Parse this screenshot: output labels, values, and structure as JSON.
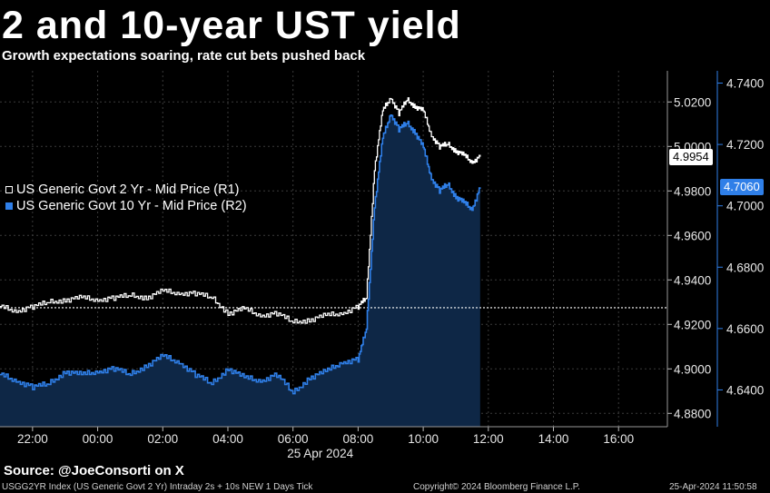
{
  "header": {
    "title": "2 and 10-year UST yield",
    "subtitle": "Growth expectations soaring, rate cut bets pushed back"
  },
  "footer": {
    "source": "Source: @JoeConsorti on X",
    "index_info": "USGG2YR Index (US Generic Govt 2 Yr) Intraday 2s + 10s NEW 1 Days  Tick",
    "copyright": "Copyright© 2024 Bloomberg Finance L.P.",
    "timestamp": "25-Apr-2024 11:50:58"
  },
  "colors": {
    "background": "#000000",
    "two_year": "#ffffff",
    "ten_year": "#2f7fe8",
    "ten_year_fill": "#0e2746",
    "grid": "#3a3a3a"
  },
  "chart_data": {
    "type": "line",
    "date_label": "25 Apr 2024",
    "x_ticks": [
      "22:00",
      "00:00",
      "02:00",
      "04:00",
      "06:00",
      "08:00",
      "10:00",
      "12:00",
      "14:00",
      "16:00"
    ],
    "x_range": [
      "21:00",
      "17:30"
    ],
    "left_axis": {
      "ticks": [
        "5.0200",
        "5.0000",
        "4.9800",
        "4.9600",
        "4.9400",
        "4.9200",
        "4.9000",
        "4.8800"
      ],
      "range": [
        4.874,
        5.034
      ]
    },
    "right_axis": {
      "ticks": [
        "4.7400",
        "4.7200",
        "4.7000",
        "4.6800",
        "4.6600",
        "4.6400"
      ],
      "range": [
        4.628,
        4.744
      ]
    },
    "grid": true,
    "legend_position": "left",
    "last_value_labels": {
      "two_year": "4.9954",
      "ten_year": "4.7060"
    },
    "reference_line": {
      "value": 4.9275,
      "axis": "left",
      "style": "dotted"
    },
    "series": [
      {
        "name": "US Generic Govt 2 Yr - Mid Price (R1)",
        "axis": "left",
        "x": [
          "21:00",
          "21:30",
          "22:00",
          "22:30",
          "23:00",
          "23:30",
          "00:00",
          "00:30",
          "01:00",
          "01:30",
          "02:00",
          "02:30",
          "03:00",
          "03:30",
          "04:00",
          "04:30",
          "05:00",
          "05:30",
          "06:00",
          "06:30",
          "07:00",
          "07:30",
          "08:00",
          "08:15",
          "08:30",
          "08:45",
          "09:00",
          "09:15",
          "09:30",
          "09:45",
          "10:00",
          "10:15",
          "10:30",
          "10:45",
          "11:00",
          "11:15",
          "11:30",
          "11:45"
        ],
        "values": [
          4.928,
          4.926,
          4.928,
          4.93,
          4.931,
          4.932,
          4.931,
          4.932,
          4.933,
          4.932,
          4.935,
          4.934,
          4.934,
          4.932,
          4.925,
          4.927,
          4.924,
          4.925,
          4.921,
          4.922,
          4.924,
          4.925,
          4.928,
          4.932,
          4.99,
          5.016,
          5.022,
          5.015,
          5.021,
          5.018,
          5.016,
          5.005,
          5.0,
          5.001,
          4.998,
          4.996,
          4.993,
          4.9954
        ]
      },
      {
        "name": "US Generic Govt 10 Yr - Mid Price (R2)",
        "axis": "right",
        "x": [
          "21:00",
          "21:30",
          "22:00",
          "22:30",
          "23:00",
          "23:30",
          "00:00",
          "00:30",
          "01:00",
          "01:30",
          "02:00",
          "02:30",
          "03:00",
          "03:30",
          "04:00",
          "04:30",
          "05:00",
          "05:30",
          "06:00",
          "06:30",
          "07:00",
          "07:30",
          "08:00",
          "08:15",
          "08:30",
          "08:45",
          "09:00",
          "09:15",
          "09:30",
          "09:45",
          "10:00",
          "10:15",
          "10:30",
          "10:45",
          "11:00",
          "11:15",
          "11:30",
          "11:45"
        ],
        "values": [
          4.645,
          4.643,
          4.641,
          4.642,
          4.646,
          4.645,
          4.646,
          4.647,
          4.645,
          4.648,
          4.651,
          4.649,
          4.645,
          4.642,
          4.647,
          4.644,
          4.643,
          4.645,
          4.639,
          4.644,
          4.646,
          4.649,
          4.65,
          4.66,
          4.7,
          4.722,
          4.73,
          4.725,
          4.727,
          4.724,
          4.719,
          4.709,
          4.705,
          4.707,
          4.703,
          4.701,
          4.699,
          4.706
        ]
      }
    ]
  }
}
